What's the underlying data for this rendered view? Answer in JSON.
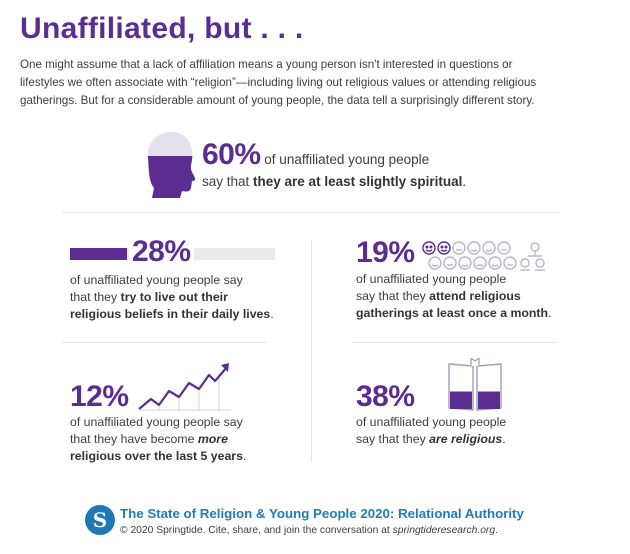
{
  "title": "Unaffiliated, but . . .",
  "intro": {
    "line1": "One might assume that a lack of affiliation means a young person isn't interested in questions or",
    "line2": "lifestyles we often associate with “religion”—including living out religious values or attending religious",
    "line3": "gatherings. But for a considerable amount of young people, the data tell a surprisingly different story."
  },
  "stat_60": {
    "percent": "60%",
    "lead": " of unaffiliated young people",
    "line2_pre": "say that ",
    "line2_bold": "they are at least slightly spiritual",
    "line2_post": ".",
    "fill_fraction": 0.6,
    "icon": "head-icon"
  },
  "stat_28": {
    "percent": "28%",
    "line1": "of unaffiliated young people say",
    "line2_pre": "that they ",
    "line2_bold": "try to live out their",
    "line3_bold": "religious beliefs in their daily lives",
    "line3_post": ".",
    "bar_fraction": 0.28,
    "icon": "progress-bar"
  },
  "stat_19": {
    "percent": "19%",
    "line1": "of unaffiliated young people",
    "line2_pre": "say that they ",
    "line2_bold": "attend religious",
    "line3_bold": "gatherings at least once a month",
    "line3_post": ".",
    "icon": "people-icon"
  },
  "stat_12": {
    "percent": "12%",
    "line1": "of unaffiliated young people say",
    "line2_pre": "that they have become ",
    "line2_bolditalic": "more",
    "line3_bold": "religious over the last 5 years",
    "line3_post": ".",
    "icon": "trend-chart-icon"
  },
  "stat_38": {
    "percent": "38%",
    "line1": "of unaffiliated young people",
    "line2_pre": "say that they ",
    "line2_bolditalic": "are religious",
    "line2_post": ".",
    "fill_fraction": 0.38,
    "icon": "book-icon"
  },
  "footer": {
    "logo_letter": "S",
    "title": "The State of Religion & Young People 2020: Relational Authority",
    "copy_pre": "© 2020 Springtide. Cite, share, and join the conversation at ",
    "copy_link": "springtideresearch.org",
    "copy_post": "."
  },
  "colors": {
    "accent_purple": "#5c2d91",
    "brand_blue": "#1f78b4",
    "light_gray": "#ebebeb"
  }
}
